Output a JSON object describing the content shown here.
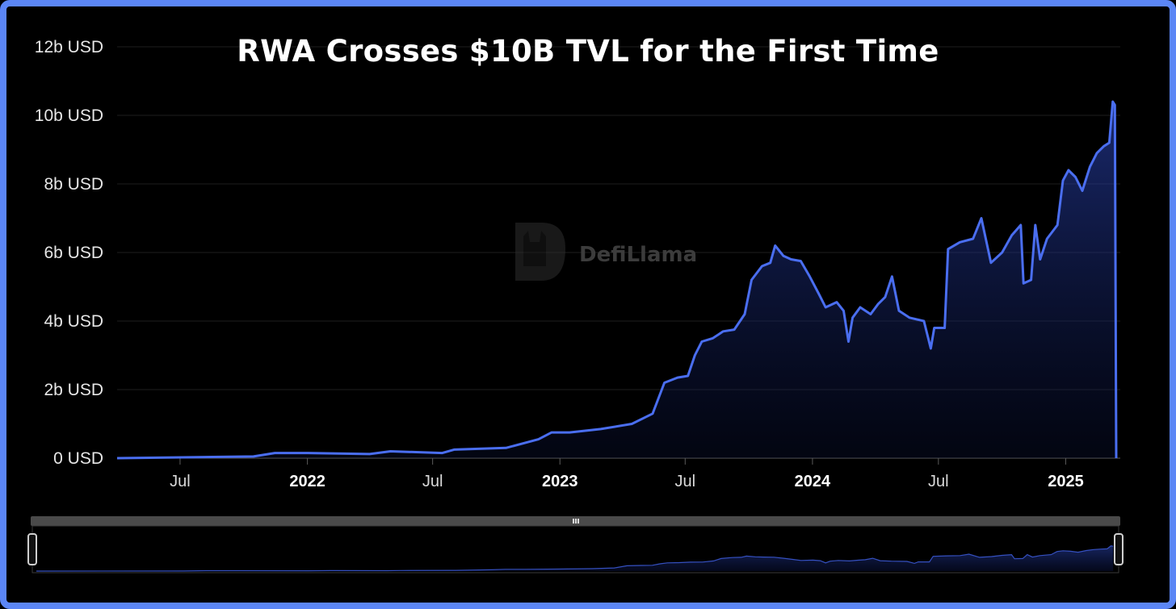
{
  "title": "RWA Crosses $10B TVL for the First Time",
  "watermark": {
    "text": "DefiLlama",
    "icon": "llama-logo-icon"
  },
  "colors": {
    "frame": "#5b86f6",
    "line": "#4a6ef0",
    "background": "#000000",
    "slider": "#4a4a4a"
  },
  "slider": {
    "handle_icon": "grip-lines-icon"
  },
  "chart_data": {
    "type": "area",
    "title": "RWA Crosses $10B TVL for the First Time",
    "xlabel": "",
    "ylabel": "",
    "ylim": [
      0,
      12
    ],
    "y_unit": "b USD",
    "y_ticks": [
      0,
      2,
      4,
      6,
      8,
      10,
      12
    ],
    "y_tick_labels": [
      "0 USD",
      "2b USD",
      "4b USD",
      "6b USD",
      "8b USD",
      "10b USD",
      "12b USD"
    ],
    "x_ticks": [
      {
        "label": "Jul",
        "x": "2021-07-01",
        "year": false
      },
      {
        "label": "2022",
        "x": "2022-01-01",
        "year": true
      },
      {
        "label": "Jul",
        "x": "2022-07-01",
        "year": false
      },
      {
        "label": "2023",
        "x": "2023-01-01",
        "year": true
      },
      {
        "label": "Jul",
        "x": "2023-07-01",
        "year": false
      },
      {
        "label": "2024",
        "x": "2024-01-01",
        "year": true
      },
      {
        "label": "Jul",
        "x": "2024-07-01",
        "year": false
      },
      {
        "label": "2025",
        "x": "2025-01-01",
        "year": true
      }
    ],
    "xlim": [
      "2021-04-01",
      "2025-03-15"
    ],
    "grid": true,
    "series": [
      {
        "points": [
          [
            "2021-04-01",
            0.0
          ],
          [
            "2021-10-15",
            0.05
          ],
          [
            "2021-11-15",
            0.15
          ],
          [
            "2022-01-01",
            0.15
          ],
          [
            "2022-04-01",
            0.12
          ],
          [
            "2022-05-01",
            0.2
          ],
          [
            "2022-07-15",
            0.15
          ],
          [
            "2022-08-01",
            0.25
          ],
          [
            "2022-10-15",
            0.3
          ],
          [
            "2022-12-01",
            0.55
          ],
          [
            "2022-12-20",
            0.75
          ],
          [
            "2023-01-15",
            0.75
          ],
          [
            "2023-03-01",
            0.85
          ],
          [
            "2023-04-15",
            1.0
          ],
          [
            "2023-05-15",
            1.3
          ],
          [
            "2023-06-01",
            2.2
          ],
          [
            "2023-06-20",
            2.35
          ],
          [
            "2023-07-05",
            2.4
          ],
          [
            "2023-07-15",
            3.0
          ],
          [
            "2023-07-25",
            3.4
          ],
          [
            "2023-08-10",
            3.5
          ],
          [
            "2023-08-25",
            3.7
          ],
          [
            "2023-09-10",
            3.75
          ],
          [
            "2023-09-25",
            4.2
          ],
          [
            "2023-10-05",
            5.2
          ],
          [
            "2023-10-20",
            5.6
          ],
          [
            "2023-11-01",
            5.7
          ],
          [
            "2023-11-08",
            6.2
          ],
          [
            "2023-11-20",
            5.9
          ],
          [
            "2023-12-01",
            5.8
          ],
          [
            "2023-12-15",
            5.75
          ],
          [
            "2023-12-28",
            5.3
          ],
          [
            "2024-01-10",
            4.8
          ],
          [
            "2024-01-20",
            4.4
          ],
          [
            "2024-02-05",
            4.55
          ],
          [
            "2024-02-15",
            4.3
          ],
          [
            "2024-02-22",
            3.4
          ],
          [
            "2024-02-28",
            4.1
          ],
          [
            "2024-03-10",
            4.4
          ],
          [
            "2024-03-25",
            4.2
          ],
          [
            "2024-04-05",
            4.5
          ],
          [
            "2024-04-15",
            4.7
          ],
          [
            "2024-04-25",
            5.3
          ],
          [
            "2024-05-05",
            4.3
          ],
          [
            "2024-05-20",
            4.1
          ],
          [
            "2024-06-10",
            4.0
          ],
          [
            "2024-06-20",
            3.2
          ],
          [
            "2024-06-25",
            3.8
          ],
          [
            "2024-07-10",
            3.8
          ],
          [
            "2024-07-15",
            6.1
          ],
          [
            "2024-08-01",
            6.3
          ],
          [
            "2024-08-20",
            6.4
          ],
          [
            "2024-09-01",
            7.0
          ],
          [
            "2024-09-15",
            5.7
          ],
          [
            "2024-10-01",
            6.0
          ],
          [
            "2024-10-15",
            6.5
          ],
          [
            "2024-10-28",
            6.8
          ],
          [
            "2024-11-01",
            5.1
          ],
          [
            "2024-11-12",
            5.2
          ],
          [
            "2024-11-18",
            6.8
          ],
          [
            "2024-11-25",
            5.8
          ],
          [
            "2024-12-05",
            6.4
          ],
          [
            "2024-12-20",
            6.8
          ],
          [
            "2024-12-28",
            8.1
          ],
          [
            "2025-01-05",
            8.4
          ],
          [
            "2025-01-15",
            8.2
          ],
          [
            "2025-01-25",
            7.8
          ],
          [
            "2025-02-05",
            8.5
          ],
          [
            "2025-02-15",
            8.9
          ],
          [
            "2025-02-25",
            9.1
          ],
          [
            "2025-03-05",
            9.2
          ],
          [
            "2025-03-10",
            10.4
          ],
          [
            "2025-03-13",
            10.3
          ],
          [
            "2025-03-15",
            0.0
          ]
        ]
      }
    ]
  }
}
